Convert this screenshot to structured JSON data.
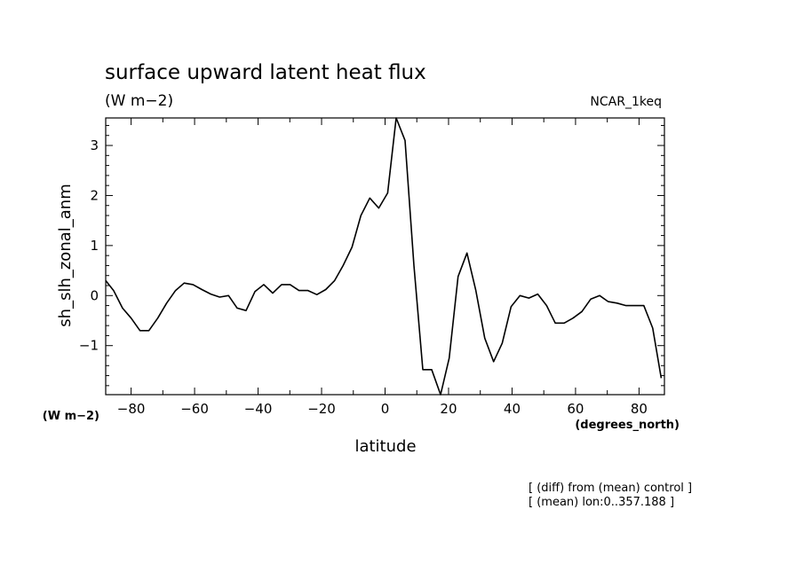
{
  "chart_data": {
    "type": "line",
    "title": "surface upward latent heat flux",
    "subtitle": "(W m−2)",
    "run_label": "NCAR_1keq",
    "xlabel": "latitude",
    "xunit": "(degrees_north)",
    "ylabel": "sh_slh_zonal_anm",
    "yunit": "(W m−2)",
    "xlim": [
      -88,
      88
    ],
    "ylim": [
      -1.98,
      3.55
    ],
    "x_ticks": [
      -80,
      -60,
      -40,
      -20,
      0,
      20,
      40,
      60,
      80
    ],
    "x_tick_labels": [
      "−80",
      "−60",
      "−40",
      "−20",
      "0",
      "20",
      "40",
      "60",
      "80"
    ],
    "y_ticks": [
      -1,
      0,
      1,
      2,
      3
    ],
    "y_tick_labels": [
      "−1",
      "0",
      "1",
      "2",
      "3"
    ],
    "grid": false,
    "legend": "none",
    "series": [
      {
        "color": "#000000",
        "x": [
          -88,
          -85.5,
          -82.7,
          -80,
          -77.2,
          -74.4,
          -71.6,
          -68.8,
          -66,
          -63.3,
          -60.5,
          -57.7,
          -54.9,
          -52.1,
          -49.3,
          -46.6,
          -43.8,
          -41,
          -38.2,
          -35.4,
          -32.6,
          -29.9,
          -27.1,
          -24.3,
          -21.5,
          -18.7,
          -15.9,
          -13.2,
          -10.4,
          -7.6,
          -4.8,
          -2,
          0.8,
          3.5,
          6.3,
          9.1,
          11.9,
          14.7,
          17.5,
          20.2,
          23,
          25.8,
          28.6,
          31.4,
          34.2,
          36.9,
          39.7,
          42.5,
          45.3,
          48.1,
          50.9,
          53.6,
          56.4,
          59.2,
          62,
          64.8,
          67.6,
          70.3,
          73.1,
          75.9,
          78.7,
          81.5,
          84.3,
          87
        ],
        "values": [
          0.3,
          0.1,
          -0.25,
          -0.45,
          -0.7,
          -0.7,
          -0.45,
          -0.15,
          0.1,
          0.25,
          0.22,
          0.12,
          0.03,
          -0.03,
          0.0,
          -0.25,
          -0.3,
          0.08,
          0.22,
          0.05,
          0.22,
          0.22,
          0.1,
          0.1,
          0.02,
          0.12,
          0.3,
          0.6,
          0.97,
          1.6,
          1.95,
          1.75,
          2.05,
          3.55,
          3.1,
          0.6,
          -1.48,
          -1.48,
          -1.98,
          -1.25,
          0.38,
          0.85,
          0.1,
          -0.85,
          -1.32,
          -0.95,
          -0.22,
          0.0,
          -0.05,
          0.03,
          -0.2,
          -0.55,
          -0.55,
          -0.45,
          -0.32,
          -0.07,
          0.0,
          -0.12,
          -0.15,
          -0.2,
          -0.2,
          -0.2,
          -0.65,
          -1.65
        ]
      }
    ]
  },
  "notes": [
    "[ (diff) from (mean) control ]",
    "[ (mean) lon:0..357.188 ]"
  ]
}
